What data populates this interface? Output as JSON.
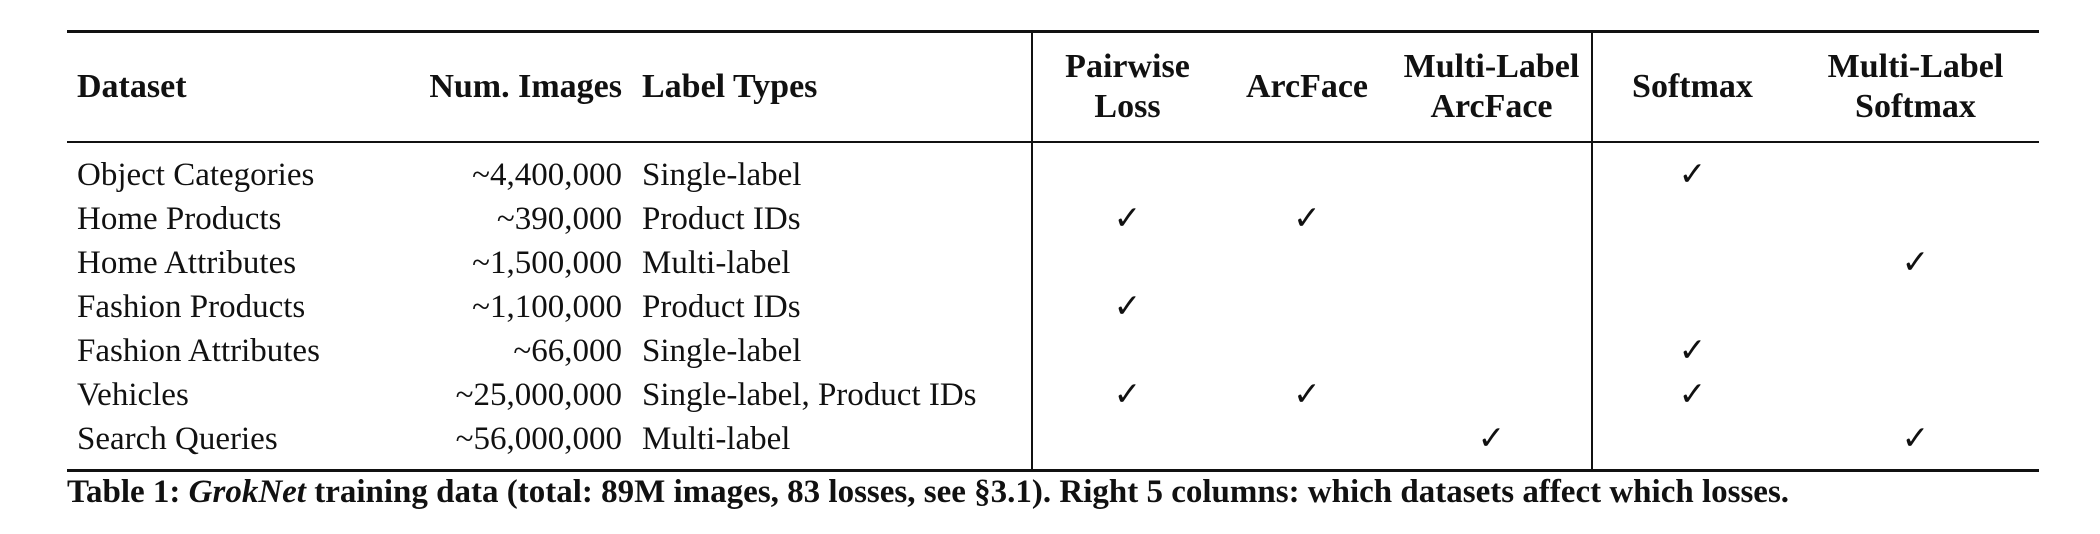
{
  "table": {
    "headers": {
      "dataset": "Dataset",
      "num_images": "Num. Images",
      "label_types": "Label Types",
      "pairwise_l1": "Pairwise",
      "pairwise_l2": "Loss",
      "arcface": "ArcFace",
      "mlarcface_l1": "Multi-Label",
      "mlarcface_l2": "ArcFace",
      "softmax": "Softmax",
      "mlsoftmax_l1": "Multi-Label",
      "mlsoftmax_l2": "Softmax"
    },
    "check_symbol": "✓",
    "rows": [
      {
        "dataset": "Object Categories",
        "num_images": "~4,400,000",
        "label_types": "Single-label",
        "pairwise": "",
        "arcface": "",
        "mlarcface": "",
        "softmax": "✓",
        "mlsoftmax": ""
      },
      {
        "dataset": "Home Products",
        "num_images": "~390,000",
        "label_types": "Product IDs",
        "pairwise": "✓",
        "arcface": "✓",
        "mlarcface": "",
        "softmax": "",
        "mlsoftmax": ""
      },
      {
        "dataset": "Home Attributes",
        "num_images": "~1,500,000",
        "label_types": "Multi-label",
        "pairwise": "",
        "arcface": "",
        "mlarcface": "",
        "softmax": "",
        "mlsoftmax": "✓"
      },
      {
        "dataset": "Fashion Products",
        "num_images": "~1,100,000",
        "label_types": "Product IDs",
        "pairwise": "✓",
        "arcface": "",
        "mlarcface": "",
        "softmax": "",
        "mlsoftmax": ""
      },
      {
        "dataset": "Fashion Attributes",
        "num_images": "~66,000",
        "label_types": "Single-label",
        "pairwise": "",
        "arcface": "",
        "mlarcface": "",
        "softmax": "✓",
        "mlsoftmax": ""
      },
      {
        "dataset": "Vehicles",
        "num_images": "~25,000,000",
        "label_types": "Single-label, Product IDs",
        "pairwise": "✓",
        "arcface": "✓",
        "mlarcface": "",
        "softmax": "✓",
        "mlsoftmax": ""
      },
      {
        "dataset": "Search Queries",
        "num_images": "~56,000,000",
        "label_types": "Multi-label",
        "pairwise": "",
        "arcface": "",
        "mlarcface": "✓",
        "softmax": "",
        "mlsoftmax": "✓"
      }
    ]
  },
  "caption": {
    "label": "Table 1: ",
    "emph": "GrokNet",
    "text": " training data (total: 89M images, 83 losses, see §3.1). Right 5 columns: which datasets affect which losses."
  }
}
